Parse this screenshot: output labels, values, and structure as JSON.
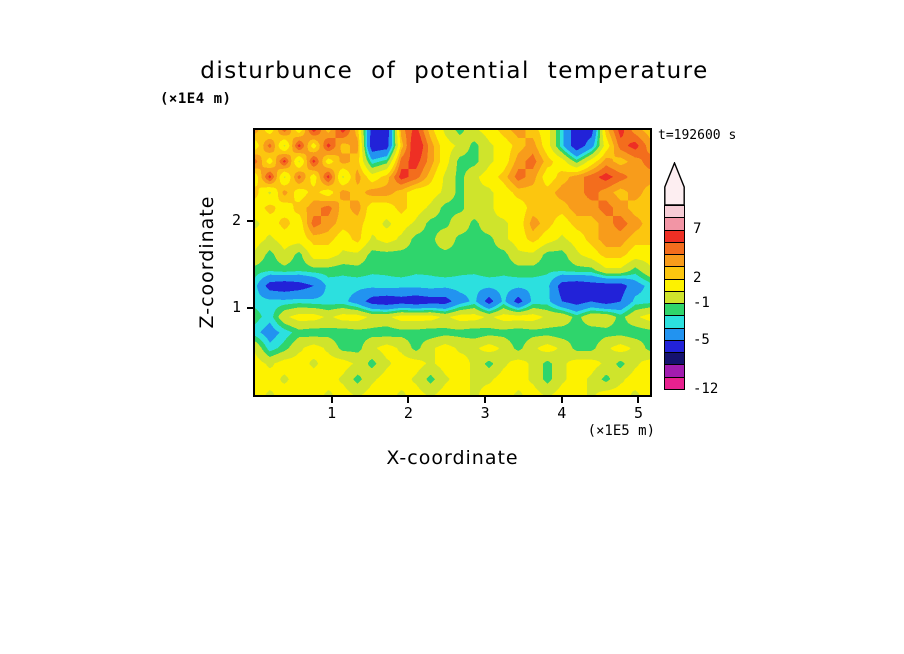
{
  "title": "disturbunce of potential temperature",
  "time_label": "t=192600 s",
  "axes": {
    "x_label": "X-coordinate",
    "x_unit": "(×1E5 m)",
    "z_label": "Z-coordinate",
    "z_unit": "(×1E4 m)"
  },
  "colorbar": {
    "labels": [
      {
        "text": "7",
        "boundary": 2
      },
      {
        "text": "2",
        "boundary": 6
      },
      {
        "text": "-1",
        "boundary": 8
      },
      {
        "text": "-5",
        "boundary": 11
      },
      {
        "text": "-12",
        "boundary": 15
      }
    ]
  },
  "chart_data": {
    "type": "heatmap",
    "title": "disturbunce of potential temperature",
    "xlabel": "X-coordinate",
    "x_unit": "(×1E5 m)",
    "ylabel": "Z-coordinate",
    "y_unit": "(×1E4 m)",
    "time_annotation": "t=192600 s",
    "x_range": [
      0,
      5.15
    ],
    "z_range": [
      0,
      3.05
    ],
    "x_ticks": [
      {
        "label": "1",
        "value": 1
      },
      {
        "label": "2",
        "value": 2
      },
      {
        "label": "3",
        "value": 3
      },
      {
        "label": "4",
        "value": 4
      },
      {
        "label": "5",
        "value": 5
      }
    ],
    "z_ticks": [
      {
        "label": "2",
        "value": 2
      },
      {
        "label": "1",
        "value": 1
      }
    ],
    "levels": [
      {
        "min": 9,
        "color": "#f6cdd6"
      },
      {
        "min": 7,
        "color": "#f295a5"
      },
      {
        "min": 5,
        "color": "#ee2f24"
      },
      {
        "min": 4,
        "color": "#f36d1d"
      },
      {
        "min": 3,
        "color": "#f89c1b"
      },
      {
        "min": 2,
        "color": "#fcc60f"
      },
      {
        "min": 0.5,
        "color": "#fdf200"
      },
      {
        "min": -1,
        "color": "#cfe42c"
      },
      {
        "min": -2,
        "color": "#2fd56c"
      },
      {
        "min": -3,
        "color": "#2ce0df"
      },
      {
        "min": -5,
        "color": "#2293f0"
      },
      {
        "min": -7,
        "color": "#2222d8"
      },
      {
        "min": -9,
        "color": "#15126e"
      },
      {
        "min": -10.5,
        "color": "#a21caf"
      },
      {
        "min": -12,
        "color": "#e8218f"
      }
    ],
    "grid_rows_top_to_bottom": true,
    "values": [
      [
        3.5,
        1.2,
        4.5,
        1.2,
        5.5,
        2.5,
        5.5,
        2.5,
        -6,
        -6.5,
        3.5,
        5.5,
        2.5,
        0.2,
        -1.5,
        0.2,
        1.2,
        2.5,
        3.5,
        2.5,
        1.2,
        -2.6,
        -6.5,
        -6,
        2.5,
        5.5,
        3.5,
        2.5
      ],
      [
        1.2,
        4.5,
        0.2,
        5.5,
        1.2,
        5.5,
        2.5,
        3.5,
        -6.5,
        -6,
        2.5,
        6.5,
        3.5,
        1.2,
        0.2,
        -1.5,
        0.2,
        1.2,
        2.5,
        3.5,
        1.2,
        -2.6,
        -6.5,
        -3.8,
        1.2,
        4.5,
        5.5,
        3.5
      ],
      [
        4.5,
        1.2,
        5.5,
        0.2,
        5.5,
        1.2,
        3.5,
        2.5,
        -2.6,
        -1.5,
        4.5,
        5.5,
        3.5,
        1.2,
        -1.5,
        -1.5,
        0.2,
        1.2,
        3.5,
        4.5,
        2.5,
        1.2,
        -1.5,
        1.2,
        3.5,
        2.5,
        3.5,
        4.5
      ],
      [
        1.2,
        5.5,
        0.2,
        4.5,
        1.2,
        5.5,
        0.2,
        3.5,
        1.2,
        2.5,
        5.5,
        4.5,
        2.5,
        0.2,
        -1.5,
        0.2,
        1.2,
        2.5,
        4.5,
        3.5,
        1.2,
        2.5,
        3.5,
        4.5,
        5.5,
        4.5,
        3.5,
        3.5
      ],
      [
        2.5,
        0.2,
        3.5,
        1.2,
        2.5,
        1.2,
        3.5,
        2.5,
        3.5,
        3.5,
        2.5,
        1.2,
        1.2,
        0.2,
        -1.5,
        0.2,
        0.2,
        1.2,
        2.5,
        2.5,
        2.5,
        3.5,
        3.5,
        4.5,
        3.5,
        2.5,
        3.5,
        2.5
      ],
      [
        1.2,
        2.5,
        1.2,
        2.5,
        3.5,
        4.5,
        2.5,
        3.5,
        1.2,
        1.2,
        2.5,
        1.2,
        0.2,
        -1.5,
        -1.5,
        0.2,
        0.2,
        1.2,
        1.2,
        2.5,
        2.5,
        2.5,
        3.5,
        3.5,
        4.5,
        3.5,
        2.5,
        2.5
      ],
      [
        0.2,
        1.2,
        2.5,
        1.2,
        4.5,
        3.5,
        2.5,
        2.5,
        1.2,
        0.2,
        1.2,
        0.2,
        -1.5,
        -1.5,
        0.2,
        -1.5,
        0.2,
        0.2,
        1.2,
        3.5,
        2.5,
        1.2,
        2.5,
        2.5,
        3.5,
        4.5,
        3.5,
        2.5
      ],
      [
        1.2,
        0.2,
        1.2,
        1.2,
        2.5,
        2.5,
        1.2,
        2.5,
        0.2,
        1.2,
        0.2,
        -1.5,
        -1.5,
        0.2,
        -1.5,
        -1.5,
        -1.5,
        0.2,
        1.2,
        2.5,
        1.2,
        0.2,
        1.2,
        2.5,
        3.5,
        3.5,
        2.5,
        2.5
      ],
      [
        0.2,
        -1.5,
        0.2,
        -1.5,
        1.2,
        1.2,
        0.2,
        0.2,
        -1.5,
        -1.5,
        -1.5,
        -1.5,
        -1.5,
        -1.5,
        -1.5,
        -1.5,
        -1.5,
        -1.5,
        0.2,
        0.2,
        -1.5,
        -1.5,
        0.2,
        1.2,
        2.5,
        2.5,
        1.2,
        1.2
      ],
      [
        -1.5,
        -1.8,
        -1.5,
        -1.8,
        -1.5,
        -1.5,
        -1.8,
        -1.5,
        -1.8,
        -1.8,
        -1.5,
        -1.8,
        -1.8,
        -1.5,
        -1.8,
        -1.8,
        -1.5,
        -1.8,
        -1.5,
        -1.5,
        -1.8,
        -1.8,
        -1.5,
        -1.5,
        0.2,
        0.2,
        -1.5,
        0.2
      ],
      [
        -2.6,
        -6,
        -6.5,
        -6,
        -5,
        -2.6,
        -2.4,
        -2.6,
        -2.6,
        -2.4,
        -2.6,
        -2.6,
        -2.4,
        -2.6,
        -2.4,
        -2.6,
        -2.6,
        -2.4,
        -2.6,
        -2.6,
        -2.6,
        -6,
        -6.5,
        -6,
        -6,
        -6,
        -3.8,
        -2.6
      ],
      [
        -2.4,
        -2.6,
        -2.6,
        -2.4,
        -2.6,
        -2.6,
        -2.6,
        -3.8,
        -6,
        -6.5,
        -6,
        -6.5,
        -6,
        -6,
        -3.8,
        -2.6,
        -6,
        -2.6,
        -6,
        -2.6,
        -2.6,
        -5,
        -6,
        -5,
        -6,
        -5,
        -2.6,
        -2.4
      ],
      [
        -1.5,
        -2.6,
        0.2,
        1.2,
        1.2,
        0.2,
        1.2,
        1.2,
        0.2,
        0.2,
        1.2,
        1.2,
        1.2,
        0.2,
        1.2,
        1.2,
        0.2,
        1.2,
        1.2,
        1.2,
        0.2,
        0.2,
        -1.5,
        0.2,
        0.2,
        -1.5,
        0.2,
        1.2
      ],
      [
        -2.6,
        -3.8,
        -2.6,
        -1.5,
        -1.8,
        -1.5,
        -1.8,
        -1.5,
        -1.5,
        -1.8,
        -1.5,
        -1.5,
        -1.8,
        -1.5,
        -1.5,
        -1.8,
        -1.5,
        -1.5,
        -1.8,
        -1.5,
        -1.5,
        -1.8,
        -1.5,
        -1.8,
        -1.5,
        -1.5,
        -1.8,
        -1.5
      ],
      [
        0.2,
        -2.6,
        -1.5,
        0.2,
        1.2,
        0.2,
        -1.5,
        -1.5,
        0.2,
        1.2,
        0.2,
        -1.5,
        0.2,
        1.2,
        0.2,
        0.2,
        1.2,
        0.2,
        -1.5,
        0.2,
        1.2,
        0.2,
        -1.5,
        -1.5,
        0.2,
        1.2,
        0.2,
        -1.5
      ],
      [
        1.2,
        0.2,
        1.2,
        1.2,
        0.2,
        1.2,
        1.2,
        0.2,
        -1.5,
        0.2,
        1.2,
        1.2,
        0.2,
        1.2,
        1.2,
        0.2,
        -1.5,
        0.2,
        1.2,
        0.2,
        -1.5,
        0.2,
        1.2,
        1.2,
        0.2,
        -1.5,
        0.2,
        1.2
      ],
      [
        1.2,
        1.2,
        0.2,
        1.2,
        1.2,
        1.2,
        0.2,
        -1.5,
        0.2,
        1.2,
        1.2,
        0.2,
        -1.5,
        0.2,
        1.2,
        0.2,
        0.2,
        1.2,
        1.2,
        0.2,
        -1.5,
        0.2,
        1.2,
        0.2,
        -1.5,
        0.2,
        1.2,
        1.2
      ],
      [
        1.2,
        0.2,
        1.2,
        1.2,
        1.2,
        0.2,
        1.2,
        0.2,
        1.2,
        1.2,
        0.2,
        1.2,
        0.2,
        1.2,
        1.2,
        0.2,
        1.2,
        1.2,
        0.2,
        1.2,
        0.2,
        1.2,
        1.2,
        0.2,
        1.2,
        1.2,
        0.2,
        1.2
      ]
    ]
  }
}
